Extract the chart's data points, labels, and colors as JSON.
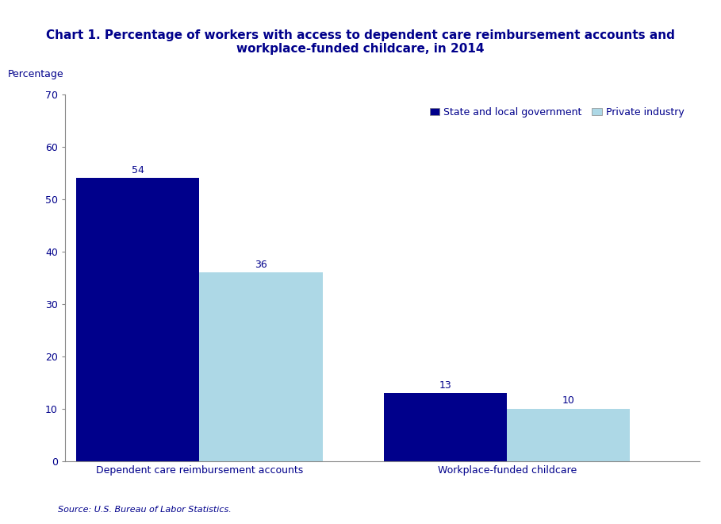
{
  "title_line1": "Chart 1. Percentage of workers with access to dependent care reimbursement accounts and",
  "title_line2": "workplace-funded childcare, in 2014",
  "ylabel": "Percentage",
  "categories": [
    "Dependent care reimbursement accounts",
    "Workplace-funded childcare"
  ],
  "series": [
    {
      "label": "State and local government",
      "values": [
        54,
        13
      ],
      "color": "#00008B"
    },
    {
      "label": "Private industry",
      "values": [
        36,
        10
      ],
      "color": "#add8e6"
    }
  ],
  "ylim": [
    0,
    70
  ],
  "yticks": [
    0,
    10,
    20,
    30,
    40,
    50,
    60,
    70
  ],
  "source_text": "Source: U.S. Bureau of Labor Statistics.",
  "bar_width": 0.32,
  "title_fontsize": 11,
  "axis_label_fontsize": 9,
  "tick_fontsize": 9,
  "legend_fontsize": 9,
  "annotation_fontsize": 9,
  "source_fontsize": 8,
  "title_color": "#00008B",
  "text_color": "#00008B",
  "background_color": "#ffffff"
}
